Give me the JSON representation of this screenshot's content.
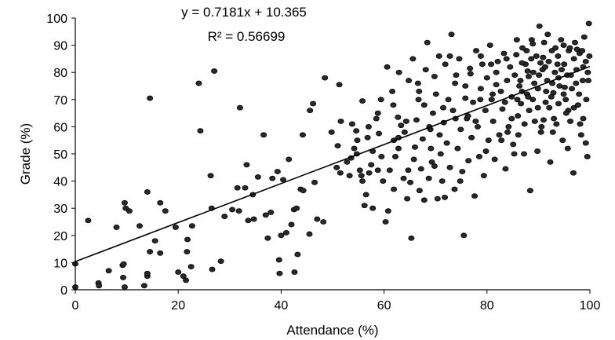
{
  "chart_data": {
    "type": "scatter",
    "xlabel": "Attendance (%)",
    "ylabel": "Grade (%)",
    "xlim": [
      0,
      100
    ],
    "ylim": [
      0,
      100
    ],
    "x_ticks": [
      0,
      20,
      40,
      60,
      80,
      100
    ],
    "y_ticks": [
      0,
      10,
      20,
      30,
      40,
      50,
      60,
      70,
      80,
      90,
      100
    ],
    "grid": false,
    "trendline": {
      "slope": 0.7181,
      "intercept": 10.365,
      "equation_label": "y = 0.7181x + 10.365",
      "r2_label": "R² = 0.56699"
    },
    "colors": {
      "points": "#2a2a2a",
      "axis": "#000000",
      "trendline": "#000000"
    },
    "points": [
      [
        0,
        1
      ],
      [
        0,
        9.5
      ],
      [
        2.5,
        25.5
      ],
      [
        4.5,
        2.5
      ],
      [
        4.6,
        1.5
      ],
      [
        6.5,
        7
      ],
      [
        8,
        23
      ],
      [
        9.2,
        9
      ],
      [
        9.4,
        9.5
      ],
      [
        9.6,
        1
      ],
      [
        9.3,
        4.5
      ],
      [
        9.6,
        32
      ],
      [
        9.8,
        30
      ],
      [
        10.5,
        29
      ],
      [
        12.5,
        23.5
      ],
      [
        13.4,
        1.5
      ],
      [
        14,
        5
      ],
      [
        14,
        6
      ],
      [
        14,
        36
      ],
      [
        14.5,
        14
      ],
      [
        14.5,
        70.5
      ],
      [
        15.5,
        18
      ],
      [
        16.5,
        13.5
      ],
      [
        16.5,
        32
      ],
      [
        17.5,
        29
      ],
      [
        19.5,
        23
      ],
      [
        20,
        6.5
      ],
      [
        21,
        5
      ],
      [
        21.5,
        3.5
      ],
      [
        21.7,
        14
      ],
      [
        21.8,
        18.5
      ],
      [
        22.5,
        8.5
      ],
      [
        22.7,
        23.5
      ],
      [
        24,
        76
      ],
      [
        24.3,
        58.5
      ],
      [
        26.3,
        42
      ],
      [
        26.5,
        30
      ],
      [
        26.6,
        7.5
      ],
      [
        27,
        80.5
      ],
      [
        28.3,
        10.5
      ],
      [
        29,
        27
      ],
      [
        30.5,
        29.5
      ],
      [
        31.5,
        37.5
      ],
      [
        31.8,
        29
      ],
      [
        32,
        67
      ],
      [
        33,
        37.5
      ],
      [
        33.3,
        46
      ],
      [
        33.6,
        25.5
      ],
      [
        34.5,
        35
      ],
      [
        34.7,
        26
      ],
      [
        35.5,
        41.5
      ],
      [
        37,
        27.5
      ],
      [
        37.4,
        19
      ],
      [
        38,
        28.5
      ],
      [
        38.3,
        41
      ],
      [
        39.3,
        43.5
      ],
      [
        39.6,
        11
      ],
      [
        39.7,
        6
      ],
      [
        40,
        20
      ],
      [
        41,
        21
      ],
      [
        41.5,
        48
      ],
      [
        42,
        24
      ],
      [
        42.5,
        29.5
      ],
      [
        42.6,
        6.5
      ],
      [
        43,
        30
      ],
      [
        43.2,
        13
      ],
      [
        43.8,
        37
      ],
      [
        44.2,
        57
      ],
      [
        44.3,
        36.5
      ],
      [
        45.5,
        20.5
      ],
      [
        46.2,
        68.5
      ],
      [
        46.5,
        39.5
      ],
      [
        47,
        26
      ],
      [
        48.2,
        25
      ],
      [
        48.5,
        78
      ],
      [
        51,
        53
      ],
      [
        51.3,
        75.5
      ],
      [
        51.5,
        43
      ],
      [
        51.6,
        62
      ],
      [
        53.3,
        42
      ],
      [
        53.6,
        48.5
      ],
      [
        54.2,
        52
      ],
      [
        54.6,
        58.5
      ],
      [
        55.3,
        44
      ],
      [
        55.6,
        42
      ],
      [
        55.8,
        69.5
      ],
      [
        56.2,
        31
      ],
      [
        56.5,
        35
      ],
      [
        57,
        60
      ],
      [
        57.5,
        46
      ],
      [
        57.8,
        51
      ],
      [
        58.5,
        63
      ],
      [
        58.8,
        44
      ],
      [
        59,
        57.5
      ],
      [
        59.4,
        70
      ],
      [
        60.3,
        25
      ],
      [
        60.6,
        82
      ],
      [
        61.1,
        44
      ],
      [
        61.6,
        73
      ],
      [
        61.9,
        37
      ],
      [
        62.2,
        49
      ],
      [
        62.7,
        63.5
      ],
      [
        62.8,
        56
      ],
      [
        62.9,
        80
      ],
      [
        63.3,
        60.5
      ],
      [
        64,
        58
      ],
      [
        64.5,
        33.5
      ],
      [
        64.7,
        44
      ],
      [
        65.1,
        39.5
      ],
      [
        65.3,
        19
      ],
      [
        65.6,
        85
      ],
      [
        66,
        52.5
      ],
      [
        66.3,
        62.5
      ],
      [
        66.6,
        76
      ],
      [
        66.9,
        36.5
      ],
      [
        67.2,
        44.5
      ],
      [
        67.5,
        55.5
      ],
      [
        67.8,
        68
      ],
      [
        68.1,
        81
      ],
      [
        68.4,
        91
      ],
      [
        68.7,
        41
      ],
      [
        69,
        59
      ],
      [
        69.3,
        47
      ],
      [
        69.5,
        65
      ],
      [
        69.8,
        78.5
      ],
      [
        70.1,
        72
      ],
      [
        70.4,
        33.5
      ],
      [
        70.7,
        86
      ],
      [
        71,
        50
      ],
      [
        71.3,
        40
      ],
      [
        71.6,
        61.5
      ],
      [
        71.9,
        83
      ],
      [
        72.2,
        54
      ],
      [
        72.5,
        70
      ],
      [
        72.8,
        45
      ],
      [
        73.1,
        94
      ],
      [
        73.4,
        66
      ],
      [
        73.7,
        37
      ],
      [
        74,
        79
      ],
      [
        74.3,
        52
      ],
      [
        74.6,
        85
      ],
      [
        74.9,
        59
      ],
      [
        75.2,
        43.5
      ],
      [
        75.5,
        20
      ],
      [
        75.8,
        75
      ],
      [
        76.1,
        63
      ],
      [
        76.4,
        47.5
      ],
      [
        76.7,
        81.5
      ],
      [
        77,
        56
      ],
      [
        77.3,
        69
      ],
      [
        77.6,
        34.5
      ],
      [
        77.9,
        88
      ],
      [
        78.2,
        60
      ],
      [
        78.5,
        49
      ],
      [
        78.8,
        74
      ],
      [
        79.1,
        83
      ],
      [
        79.4,
        42
      ],
      [
        79.7,
        66
      ],
      [
        80,
        78
      ],
      [
        80.3,
        55
      ],
      [
        80.6,
        90
      ],
      [
        80.9,
        70
      ],
      [
        81.2,
        62
      ],
      [
        81.5,
        48
      ],
      [
        81.8,
        80
      ],
      [
        82.1,
        84
      ],
      [
        82.4,
        57
      ],
      [
        82.7,
        73
      ],
      [
        83,
        66.5
      ],
      [
        83.3,
        87
      ],
      [
        83.6,
        44.5
      ],
      [
        83.9,
        77
      ],
      [
        84.2,
        60
      ],
      [
        84.5,
        82
      ],
      [
        84.8,
        71
      ],
      [
        85.1,
        53.5
      ],
      [
        85.4,
        79
      ],
      [
        85.7,
        86.5
      ],
      [
        86,
        64
      ],
      [
        86.3,
        75
      ],
      [
        86.6,
        68.5
      ],
      [
        86.9,
        89
      ],
      [
        87.2,
        50
      ],
      [
        87.5,
        83
      ],
      [
        87.8,
        72
      ],
      [
        88.1,
        78.5
      ],
      [
        88.4,
        36.5
      ],
      [
        88.7,
        92
      ],
      [
        89,
        80
      ],
      [
        89.3,
        62
      ],
      [
        89.6,
        86
      ],
      [
        89.9,
        74
      ],
      [
        90.2,
        97
      ],
      [
        90.5,
        58
      ],
      [
        90.8,
        81
      ],
      [
        91.1,
        91
      ],
      [
        91.4,
        69
      ],
      [
        91.7,
        77
      ],
      [
        92,
        84
      ],
      [
        92.3,
        47
      ],
      [
        92.6,
        88
      ],
      [
        92.9,
        72.5
      ],
      [
        93.2,
        80
      ],
      [
        93.5,
        61
      ],
      [
        93.8,
        86
      ],
      [
        94.1,
        75
      ],
      [
        94.4,
        92
      ],
      [
        94.7,
        55
      ],
      [
        95,
        83
      ],
      [
        95.3,
        70
      ],
      [
        95.6,
        79
      ],
      [
        95.9,
        88
      ],
      [
        96.2,
        62
      ],
      [
        96.5,
        74
      ],
      [
        96.8,
        43
      ],
      [
        97.1,
        91
      ],
      [
        97.4,
        81
      ],
      [
        97.7,
        68
      ],
      [
        98,
        87
      ],
      [
        98.3,
        57
      ],
      [
        98.6,
        77
      ],
      [
        98.9,
        93
      ],
      [
        99.2,
        84
      ],
      [
        99.5,
        49
      ],
      [
        99.8,
        98
      ],
      [
        99.6,
        80
      ],
      [
        99.2,
        54
      ],
      [
        98.7,
        63
      ],
      [
        97.9,
        72
      ],
      [
        96.9,
        85
      ],
      [
        95.8,
        66
      ],
      [
        94.9,
        90
      ],
      [
        93.9,
        78
      ],
      [
        92.8,
        58
      ],
      [
        91.8,
        94
      ],
      [
        90.9,
        85.5
      ],
      [
        89.9,
        67
      ],
      [
        88.9,
        90.5
      ],
      [
        87.9,
        80.5
      ],
      [
        86.8,
        73
      ],
      [
        85.8,
        92
      ],
      [
        84.8,
        63
      ],
      [
        83.8,
        85
      ],
      [
        82.8,
        55
      ],
      [
        81.8,
        75.5
      ],
      [
        80.8,
        83
      ],
      [
        79.8,
        51
      ],
      [
        78.8,
        86
      ],
      [
        77.8,
        62
      ],
      [
        76.8,
        79.5
      ],
      [
        75.8,
        70.5
      ],
      [
        74.8,
        40
      ],
      [
        73.8,
        76
      ],
      [
        72.8,
        86
      ],
      [
        71.8,
        34
      ],
      [
        70.8,
        57
      ],
      [
        69.8,
        45.5
      ],
      [
        68.8,
        60
      ],
      [
        67.8,
        33
      ],
      [
        66.8,
        73
      ],
      [
        65.8,
        48
      ],
      [
        64.8,
        77
      ],
      [
        63.8,
        41
      ],
      [
        62.8,
        52
      ],
      [
        61.8,
        68
      ],
      [
        60.8,
        29
      ],
      [
        59.8,
        40
      ],
      [
        58.8,
        65
      ],
      [
        57.8,
        30
      ],
      [
        56.8,
        56
      ],
      [
        55.8,
        40
      ],
      [
        54.8,
        55
      ],
      [
        53.8,
        61
      ],
      [
        52.8,
        47
      ],
      [
        50.8,
        45
      ],
      [
        49.8,
        58
      ],
      [
        45.6,
        66
      ],
      [
        40.4,
        40.5
      ],
      [
        36.6,
        57
      ],
      [
        84,
        58
      ],
      [
        85.3,
        50
      ],
      [
        86.1,
        57
      ],
      [
        86.8,
        83.5
      ],
      [
        87.3,
        61
      ],
      [
        88,
        71
      ],
      [
        88.6,
        85
      ],
      [
        89.2,
        76
      ],
      [
        89.8,
        51
      ],
      [
        90.4,
        83.5
      ],
      [
        91,
        62.5
      ],
      [
        91.5,
        73
      ],
      [
        92.1,
        67
      ],
      [
        92.7,
        76
      ],
      [
        93.3,
        89
      ],
      [
        93.9,
        68.5
      ],
      [
        94.5,
        81
      ],
      [
        95.1,
        74.5
      ],
      [
        95.7,
        52
      ],
      [
        96.3,
        79
      ],
      [
        96.9,
        67
      ],
      [
        97.5,
        88.5
      ],
      [
        98.1,
        61
      ],
      [
        98.7,
        82
      ],
      [
        99.3,
        70
      ],
      [
        99.9,
        86
      ],
      [
        86.5,
        77
      ],
      [
        87.7,
        88
      ],
      [
        88.9,
        70
      ],
      [
        90.1,
        79
      ],
      [
        91.3,
        82
      ],
      [
        92.5,
        71
      ],
      [
        93.7,
        83
      ],
      [
        94.9,
        72
      ],
      [
        96.1,
        89
      ],
      [
        97.3,
        76
      ],
      [
        98.5,
        88
      ],
      [
        99.7,
        77
      ],
      [
        95.4,
        65
      ],
      [
        93,
        63
      ],
      [
        90.6,
        60
      ],
      [
        88.2,
        66
      ],
      [
        85.9,
        70
      ],
      [
        83.5,
        69
      ],
      [
        81.1,
        72
      ],
      [
        78.7,
        70
      ],
      [
        76.3,
        64
      ],
      [
        73.9,
        63
      ],
      [
        71.5,
        67
      ],
      [
        69.1,
        52
      ],
      [
        66.7,
        70
      ],
      [
        64.3,
        62
      ],
      [
        61.9,
        55
      ],
      [
        59.5,
        49
      ],
      [
        57.1,
        43
      ],
      [
        54.7,
        50
      ]
    ]
  }
}
